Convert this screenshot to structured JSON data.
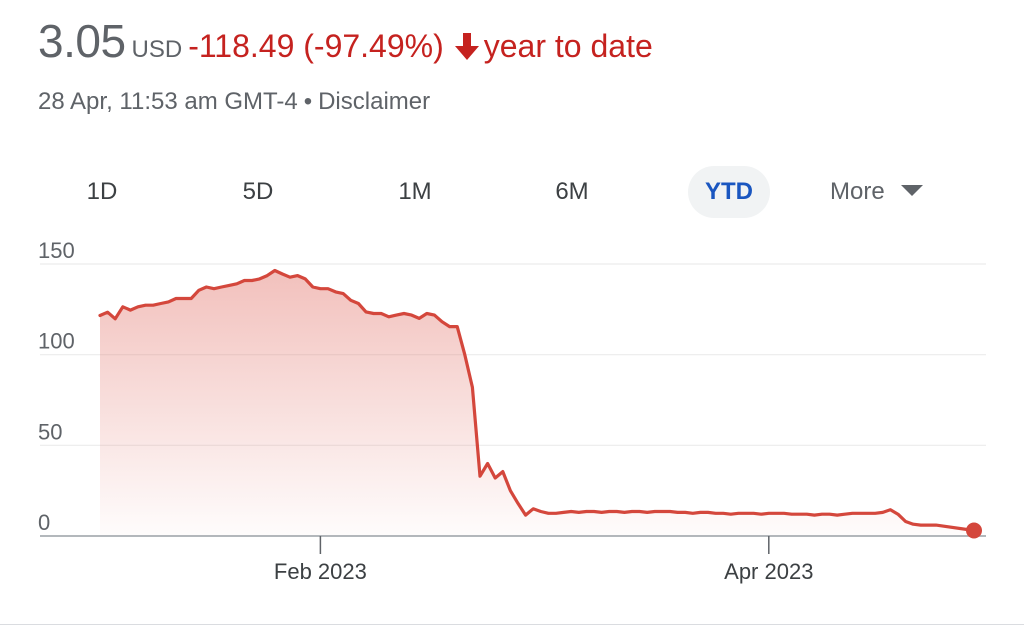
{
  "header": {
    "price": "3.05",
    "currency": "USD",
    "change": "-118.49 (-97.49%)",
    "period": "year to date",
    "timestamp": "28 Apr, 11:53 am GMT-4",
    "separator": "•",
    "disclaimer": "Disclaimer"
  },
  "colors": {
    "negative": "#c5221f",
    "line": "#d4473c",
    "active_tab": "#1a56c0"
  },
  "tabs": [
    {
      "label": "1D",
      "active": false
    },
    {
      "label": "5D",
      "active": false
    },
    {
      "label": "1M",
      "active": false
    },
    {
      "label": "6M",
      "active": false
    },
    {
      "label": "YTD",
      "active": true
    }
  ],
  "more_label": "More",
  "chart_data": {
    "type": "area",
    "title": "",
    "xlabel": "",
    "ylabel": "",
    "ylim": [
      0,
      150
    ],
    "yticks": [
      0,
      50,
      100,
      150
    ],
    "xticks": [
      {
        "date": "2023-02-01",
        "label": "Feb 2023"
      },
      {
        "date": "2023-04-01",
        "label": "Apr 2023"
      }
    ],
    "xlim": [
      "2023-01-03",
      "2023-04-28"
    ],
    "grid": true,
    "series": [
      {
        "values": [
          {
            "x": "2023-01-03",
            "y": 121.6
          },
          {
            "x": "2023-01-04",
            "y": 123.4
          },
          {
            "x": "2023-01-05",
            "y": 119.8
          },
          {
            "x": "2023-01-06",
            "y": 126.4
          },
          {
            "x": "2023-01-07",
            "y": 124.6
          },
          {
            "x": "2023-01-08",
            "y": 126.4
          },
          {
            "x": "2023-01-09",
            "y": 127.3
          },
          {
            "x": "2023-01-10",
            "y": 127.3
          },
          {
            "x": "2023-01-11",
            "y": 128.2
          },
          {
            "x": "2023-01-12",
            "y": 129.1
          },
          {
            "x": "2023-01-13",
            "y": 131.0
          },
          {
            "x": "2023-01-14",
            "y": 131.0
          },
          {
            "x": "2023-01-15",
            "y": 131.0
          },
          {
            "x": "2023-01-16",
            "y": 135.5
          },
          {
            "x": "2023-01-17",
            "y": 137.3
          },
          {
            "x": "2023-01-18",
            "y": 136.4
          },
          {
            "x": "2023-01-19",
            "y": 137.3
          },
          {
            "x": "2023-01-20",
            "y": 138.2
          },
          {
            "x": "2023-01-21",
            "y": 139.1
          },
          {
            "x": "2023-01-22",
            "y": 140.9
          },
          {
            "x": "2023-01-23",
            "y": 140.9
          },
          {
            "x": "2023-01-24",
            "y": 141.8
          },
          {
            "x": "2023-01-25",
            "y": 143.6
          },
          {
            "x": "2023-01-26",
            "y": 146.4
          },
          {
            "x": "2023-01-27",
            "y": 144.5
          },
          {
            "x": "2023-01-28",
            "y": 142.7
          },
          {
            "x": "2023-01-29",
            "y": 143.6
          },
          {
            "x": "2023-01-30",
            "y": 141.8
          },
          {
            "x": "2023-01-31",
            "y": 137.3
          },
          {
            "x": "2023-02-01",
            "y": 136.4
          },
          {
            "x": "2023-02-02",
            "y": 136.4
          },
          {
            "x": "2023-02-03",
            "y": 134.6
          },
          {
            "x": "2023-02-04",
            "y": 133.7
          },
          {
            "x": "2023-02-05",
            "y": 130.0
          },
          {
            "x": "2023-02-06",
            "y": 128.2
          },
          {
            "x": "2023-02-07",
            "y": 123.6
          },
          {
            "x": "2023-02-08",
            "y": 122.7
          },
          {
            "x": "2023-02-09",
            "y": 122.7
          },
          {
            "x": "2023-02-10",
            "y": 120.9
          },
          {
            "x": "2023-02-11",
            "y": 121.8
          },
          {
            "x": "2023-02-12",
            "y": 122.7
          },
          {
            "x": "2023-02-13",
            "y": 121.8
          },
          {
            "x": "2023-02-14",
            "y": 120.0
          },
          {
            "x": "2023-02-15",
            "y": 122.7
          },
          {
            "x": "2023-02-16",
            "y": 121.8
          },
          {
            "x": "2023-02-17",
            "y": 118.2
          },
          {
            "x": "2023-02-18",
            "y": 115.5
          },
          {
            "x": "2023-02-19",
            "y": 115.5
          },
          {
            "x": "2023-02-20",
            "y": 100.0
          },
          {
            "x": "2023-02-21",
            "y": 82.0
          },
          {
            "x": "2023-02-22",
            "y": 33.0
          },
          {
            "x": "2023-02-23",
            "y": 40.0
          },
          {
            "x": "2023-02-24",
            "y": 32.0
          },
          {
            "x": "2023-02-25",
            "y": 35.5
          },
          {
            "x": "2023-02-26",
            "y": 25.0
          },
          {
            "x": "2023-02-27",
            "y": 18.0
          },
          {
            "x": "2023-02-28",
            "y": 11.5
          },
          {
            "x": "2023-03-01",
            "y": 15.0
          },
          {
            "x": "2023-03-02",
            "y": 13.5
          },
          {
            "x": "2023-03-03",
            "y": 12.5
          },
          {
            "x": "2023-03-04",
            "y": 12.5
          },
          {
            "x": "2023-03-05",
            "y": 13.0
          },
          {
            "x": "2023-03-06",
            "y": 13.5
          },
          {
            "x": "2023-03-07",
            "y": 13.0
          },
          {
            "x": "2023-03-08",
            "y": 13.5
          },
          {
            "x": "2023-03-09",
            "y": 13.5
          },
          {
            "x": "2023-03-10",
            "y": 13.0
          },
          {
            "x": "2023-03-11",
            "y": 13.5
          },
          {
            "x": "2023-03-12",
            "y": 13.5
          },
          {
            "x": "2023-03-13",
            "y": 13.0
          },
          {
            "x": "2023-03-14",
            "y": 13.5
          },
          {
            "x": "2023-03-15",
            "y": 13.5
          },
          {
            "x": "2023-03-16",
            "y": 13.0
          },
          {
            "x": "2023-03-17",
            "y": 13.5
          },
          {
            "x": "2023-03-18",
            "y": 13.5
          },
          {
            "x": "2023-03-19",
            "y": 13.5
          },
          {
            "x": "2023-03-20",
            "y": 13.0
          },
          {
            "x": "2023-03-21",
            "y": 13.0
          },
          {
            "x": "2023-03-22",
            "y": 12.5
          },
          {
            "x": "2023-03-23",
            "y": 13.0
          },
          {
            "x": "2023-03-24",
            "y": 13.0
          },
          {
            "x": "2023-03-25",
            "y": 12.5
          },
          {
            "x": "2023-03-26",
            "y": 12.5
          },
          {
            "x": "2023-03-27",
            "y": 12.0
          },
          {
            "x": "2023-03-28",
            "y": 12.5
          },
          {
            "x": "2023-03-29",
            "y": 12.5
          },
          {
            "x": "2023-03-30",
            "y": 12.5
          },
          {
            "x": "2023-03-31",
            "y": 12.0
          },
          {
            "x": "2023-04-01",
            "y": 12.5
          },
          {
            "x": "2023-04-02",
            "y": 12.5
          },
          {
            "x": "2023-04-03",
            "y": 12.5
          },
          {
            "x": "2023-04-04",
            "y": 12.0
          },
          {
            "x": "2023-04-05",
            "y": 12.0
          },
          {
            "x": "2023-04-06",
            "y": 12.0
          },
          {
            "x": "2023-04-07",
            "y": 11.5
          },
          {
            "x": "2023-04-08",
            "y": 12.0
          },
          {
            "x": "2023-04-09",
            "y": 12.0
          },
          {
            "x": "2023-04-10",
            "y": 11.5
          },
          {
            "x": "2023-04-11",
            "y": 12.0
          },
          {
            "x": "2023-04-12",
            "y": 12.5
          },
          {
            "x": "2023-04-13",
            "y": 12.5
          },
          {
            "x": "2023-04-14",
            "y": 12.5
          },
          {
            "x": "2023-04-15",
            "y": 12.5
          },
          {
            "x": "2023-04-16",
            "y": 13.0
          },
          {
            "x": "2023-04-17",
            "y": 14.5
          },
          {
            "x": "2023-04-18",
            "y": 12.0
          },
          {
            "x": "2023-04-19",
            "y": 8.0
          },
          {
            "x": "2023-04-20",
            "y": 6.5
          },
          {
            "x": "2023-04-21",
            "y": 6.0
          },
          {
            "x": "2023-04-22",
            "y": 6.0
          },
          {
            "x": "2023-04-23",
            "y": 6.0
          },
          {
            "x": "2023-04-28",
            "y": 3.05
          }
        ]
      }
    ]
  }
}
